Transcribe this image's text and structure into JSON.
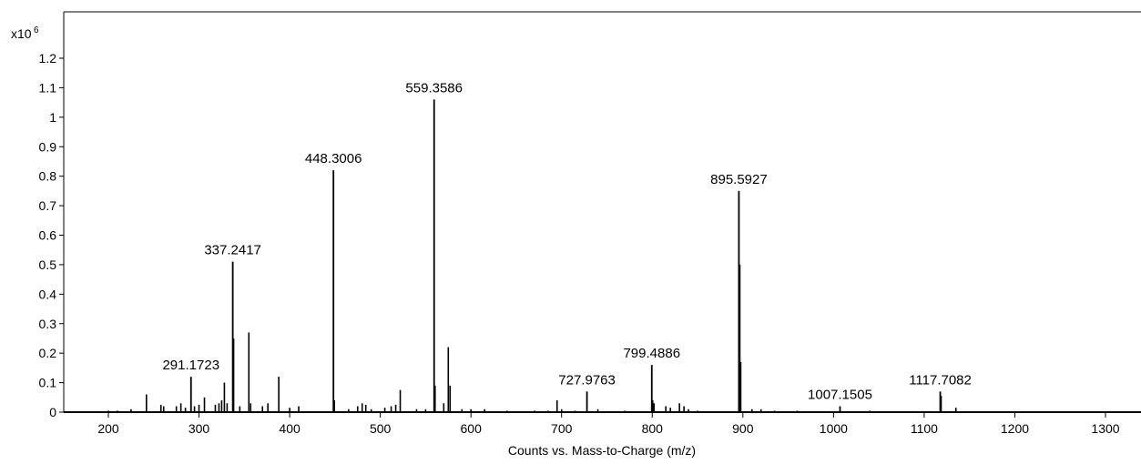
{
  "chart_data": {
    "type": "bar",
    "title": "",
    "xlabel": "Counts vs. Mass-to-Charge (m/z)",
    "ylabel": "",
    "y_multiplier_label": "x10",
    "y_multiplier_exponent": "6",
    "xlim": [
      150,
      1350
    ],
    "ylim": [
      0,
      1.25
    ],
    "x_ticks": [
      200,
      300,
      400,
      500,
      600,
      700,
      800,
      900,
      1000,
      1100,
      1200,
      1300
    ],
    "x_tick_labels": [
      "200",
      "300",
      "400",
      "500",
      "600",
      "700",
      "800",
      "900",
      "1000",
      "1100",
      "1200",
      "1300"
    ],
    "y_ticks": [
      0,
      0.1,
      0.2,
      0.3,
      0.4,
      0.5,
      0.6,
      0.7,
      0.8,
      0.9,
      1.0,
      1.1,
      1.2
    ],
    "y_tick_labels": [
      "0",
      "0.1",
      "0.2",
      "0.3",
      "0.4",
      "0.5",
      "0.6",
      "0.7",
      "0.8",
      "0.9",
      "1",
      "1.1",
      "1.2"
    ],
    "grid": false,
    "bar_color": "#000000",
    "labeled_peaks": [
      {
        "mz": 291.1723,
        "intensity": 0.12,
        "label": "291.1723"
      },
      {
        "mz": 337.2417,
        "intensity": 0.51,
        "label": "337.2417"
      },
      {
        "mz": 448.3006,
        "intensity": 0.82,
        "label": "448.3006"
      },
      {
        "mz": 559.3586,
        "intensity": 1.06,
        "label": "559.3586"
      },
      {
        "mz": 727.9763,
        "intensity": 0.07,
        "label": "727.9763"
      },
      {
        "mz": 799.4886,
        "intensity": 0.16,
        "label": "799.4886"
      },
      {
        "mz": 895.5927,
        "intensity": 0.75,
        "label": "895.5927"
      },
      {
        "mz": 1007.1505,
        "intensity": 0.02,
        "label": "1007.1505"
      },
      {
        "mz": 1117.7082,
        "intensity": 0.07,
        "label": "1117.7082"
      }
    ],
    "minor_peaks": [
      {
        "mz": 200,
        "intensity": 0.005
      },
      {
        "mz": 210,
        "intensity": 0.005
      },
      {
        "mz": 225,
        "intensity": 0.01
      },
      {
        "mz": 242,
        "intensity": 0.06
      },
      {
        "mz": 258,
        "intensity": 0.025
      },
      {
        "mz": 261,
        "intensity": 0.02
      },
      {
        "mz": 275,
        "intensity": 0.02
      },
      {
        "mz": 280,
        "intensity": 0.03
      },
      {
        "mz": 285,
        "intensity": 0.015
      },
      {
        "mz": 295,
        "intensity": 0.02
      },
      {
        "mz": 300,
        "intensity": 0.025
      },
      {
        "mz": 306,
        "intensity": 0.05
      },
      {
        "mz": 318,
        "intensity": 0.025
      },
      {
        "mz": 322,
        "intensity": 0.03
      },
      {
        "mz": 325,
        "intensity": 0.04
      },
      {
        "mz": 328,
        "intensity": 0.1
      },
      {
        "mz": 331,
        "intensity": 0.03
      },
      {
        "mz": 338.2,
        "intensity": 0.25
      },
      {
        "mz": 345,
        "intensity": 0.02
      },
      {
        "mz": 355,
        "intensity": 0.27
      },
      {
        "mz": 357,
        "intensity": 0.03
      },
      {
        "mz": 370,
        "intensity": 0.02
      },
      {
        "mz": 376,
        "intensity": 0.03
      },
      {
        "mz": 388,
        "intensity": 0.12
      },
      {
        "mz": 400,
        "intensity": 0.015
      },
      {
        "mz": 410,
        "intensity": 0.02
      },
      {
        "mz": 449.3,
        "intensity": 0.04
      },
      {
        "mz": 465,
        "intensity": 0.01
      },
      {
        "mz": 475,
        "intensity": 0.02
      },
      {
        "mz": 480,
        "intensity": 0.03
      },
      {
        "mz": 484,
        "intensity": 0.025
      },
      {
        "mz": 490,
        "intensity": 0.01
      },
      {
        "mz": 505,
        "intensity": 0.015
      },
      {
        "mz": 512,
        "intensity": 0.02
      },
      {
        "mz": 517,
        "intensity": 0.025
      },
      {
        "mz": 522,
        "intensity": 0.075
      },
      {
        "mz": 540,
        "intensity": 0.01
      },
      {
        "mz": 550,
        "intensity": 0.01
      },
      {
        "mz": 560.4,
        "intensity": 0.09
      },
      {
        "mz": 570,
        "intensity": 0.03
      },
      {
        "mz": 575,
        "intensity": 0.22
      },
      {
        "mz": 577,
        "intensity": 0.09
      },
      {
        "mz": 590,
        "intensity": 0.01
      },
      {
        "mz": 600,
        "intensity": 0.01
      },
      {
        "mz": 615,
        "intensity": 0.01
      },
      {
        "mz": 640,
        "intensity": 0.005
      },
      {
        "mz": 670,
        "intensity": 0.005
      },
      {
        "mz": 685,
        "intensity": 0.005
      },
      {
        "mz": 695,
        "intensity": 0.04
      },
      {
        "mz": 700,
        "intensity": 0.01
      },
      {
        "mz": 715,
        "intensity": 0.005
      },
      {
        "mz": 740,
        "intensity": 0.01
      },
      {
        "mz": 770,
        "intensity": 0.005
      },
      {
        "mz": 800.5,
        "intensity": 0.04
      },
      {
        "mz": 802,
        "intensity": 0.03
      },
      {
        "mz": 815,
        "intensity": 0.02
      },
      {
        "mz": 820,
        "intensity": 0.015
      },
      {
        "mz": 830,
        "intensity": 0.03
      },
      {
        "mz": 835,
        "intensity": 0.02
      },
      {
        "mz": 840,
        "intensity": 0.01
      },
      {
        "mz": 850,
        "intensity": 0.005
      },
      {
        "mz": 896.6,
        "intensity": 0.5
      },
      {
        "mz": 897.6,
        "intensity": 0.17
      },
      {
        "mz": 910,
        "intensity": 0.01
      },
      {
        "mz": 920,
        "intensity": 0.01
      },
      {
        "mz": 935,
        "intensity": 0.005
      },
      {
        "mz": 960,
        "intensity": 0.005
      },
      {
        "mz": 1040,
        "intensity": 0.005
      },
      {
        "mz": 1118.7,
        "intensity": 0.055
      },
      {
        "mz": 1135,
        "intensity": 0.015
      }
    ]
  }
}
